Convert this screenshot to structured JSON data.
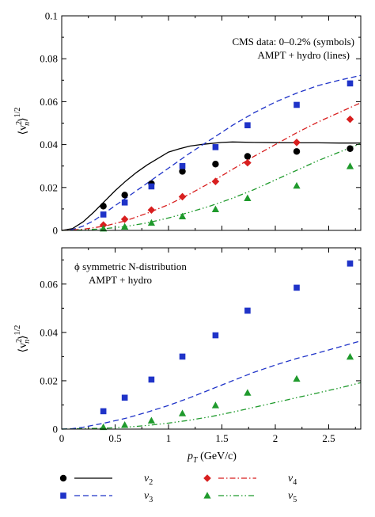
{
  "colors": {
    "v2": "#000000",
    "v3": "#1f33c8",
    "v4": "#d81f1f",
    "v5": "#1f9a2c"
  },
  "chart_data": [
    {
      "type": "scatter",
      "panel": "top",
      "annotation_lines": [
        "CMS data: 0–0.2% (symbols)",
        "AMPT + hydro (lines)"
      ],
      "ylabel_main": "⟨v",
      "ylabel_sup": "2",
      "ylabel_sub": "n",
      "ylabel_close": "⟩",
      "ylabel_exp": "1/2",
      "xlim": [
        0,
        2.8
      ],
      "ylim": [
        0,
        0.1
      ],
      "yticks": [
        0,
        0.02,
        0.04,
        0.06,
        0.08,
        0.1
      ],
      "ytick_labels": [
        "0",
        "0.02",
        "0.04",
        "0.06",
        "0.08",
        "0.1"
      ],
      "series": [
        {
          "name": "v2",
          "kind": "points",
          "marker": "circle",
          "color": "#000000",
          "x": [
            0.39,
            0.59,
            0.84,
            1.13,
            1.44,
            1.74,
            2.2,
            2.7
          ],
          "y": [
            0.0113,
            0.0165,
            0.0218,
            0.0275,
            0.0309,
            0.0345,
            0.0368,
            0.0381
          ]
        },
        {
          "name": "v3",
          "kind": "points",
          "marker": "square",
          "color": "#1f33c8",
          "x": [
            0.39,
            0.59,
            0.84,
            1.13,
            1.44,
            1.74,
            2.2,
            2.7
          ],
          "y": [
            0.0074,
            0.013,
            0.0205,
            0.03,
            0.0388,
            0.049,
            0.0585,
            0.0685
          ]
        },
        {
          "name": "v4",
          "kind": "points",
          "marker": "diamond",
          "color": "#d81f1f",
          "x": [
            0.39,
            0.59,
            0.84,
            1.13,
            1.44,
            1.74,
            2.2,
            2.7
          ],
          "y": [
            0.0025,
            0.0052,
            0.0095,
            0.0157,
            0.0228,
            0.0315,
            0.041,
            0.0518
          ]
        },
        {
          "name": "v5",
          "kind": "points",
          "marker": "triangle",
          "color": "#1f9a2c",
          "x": [
            0.39,
            0.59,
            0.84,
            1.13,
            1.44,
            1.74,
            2.2,
            2.7
          ],
          "y": [
            0.0008,
            0.0017,
            0.0035,
            0.0065,
            0.0098,
            0.015,
            0.0208,
            0.0299
          ]
        },
        {
          "name": "v2",
          "kind": "line",
          "dash": "solid",
          "color": "#000000",
          "x": [
            0,
            0.1,
            0.2,
            0.3,
            0.4,
            0.5,
            0.6,
            0.7,
            0.8,
            0.9,
            1.0,
            1.1,
            1.2,
            1.3,
            1.4,
            1.5,
            1.6,
            1.8,
            2.0,
            2.2,
            2.4,
            2.6,
            2.8
          ],
          "y": [
            0,
            0.0008,
            0.004,
            0.0085,
            0.0135,
            0.0185,
            0.023,
            0.027,
            0.0305,
            0.0335,
            0.0365,
            0.038,
            0.0393,
            0.04,
            0.0405,
            0.041,
            0.0412,
            0.041,
            0.0409,
            0.0408,
            0.0408,
            0.0407,
            0.0407
          ]
        },
        {
          "name": "v3",
          "kind": "line",
          "dash": "dashed",
          "color": "#1f33c8",
          "x": [
            0,
            0.1,
            0.2,
            0.3,
            0.4,
            0.5,
            0.6,
            0.7,
            0.8,
            0.9,
            1.0,
            1.2,
            1.4,
            1.6,
            1.8,
            2.0,
            2.2,
            2.4,
            2.6,
            2.8
          ],
          "y": [
            0,
            0.0004,
            0.002,
            0.0045,
            0.008,
            0.0115,
            0.015,
            0.0185,
            0.022,
            0.0255,
            0.029,
            0.036,
            0.0425,
            0.049,
            0.0548,
            0.0598,
            0.064,
            0.0675,
            0.07,
            0.0722
          ]
        },
        {
          "name": "v4",
          "kind": "line",
          "dash": "dashdot",
          "color": "#d81f1f",
          "x": [
            0,
            0.2,
            0.4,
            0.6,
            0.8,
            1.0,
            1.2,
            1.4,
            1.6,
            1.8,
            2.0,
            2.2,
            2.4,
            2.6,
            2.8
          ],
          "y": [
            0,
            0.0005,
            0.002,
            0.0045,
            0.008,
            0.012,
            0.017,
            0.0225,
            0.0285,
            0.0345,
            0.04,
            0.0455,
            0.0505,
            0.055,
            0.0595
          ]
        },
        {
          "name": "v5",
          "kind": "line",
          "dash": "dashdotdot",
          "color": "#1f9a2c",
          "x": [
            0,
            0.2,
            0.4,
            0.6,
            0.8,
            1.0,
            1.2,
            1.4,
            1.6,
            1.8,
            2.0,
            2.2,
            2.4,
            2.6,
            2.8
          ],
          "y": [
            0,
            0.0002,
            0.0008,
            0.0018,
            0.0035,
            0.0058,
            0.0085,
            0.0115,
            0.015,
            0.019,
            0.0235,
            0.028,
            0.0325,
            0.0365,
            0.0405
          ]
        }
      ]
    },
    {
      "type": "scatter",
      "panel": "bottom",
      "annotation_lines": [
        "ϕ symmetric N-distribution",
        "AMPT + hydro"
      ],
      "ylabel_main": "⟨v",
      "ylabel_sup": "2",
      "ylabel_sub": "n",
      "ylabel_close": "⟩",
      "ylabel_exp": "1/2",
      "xlabel_main": "p",
      "xlabel_sub": "T",
      "xlabel_rest": " (GeV/c)",
      "xlim": [
        0,
        2.8
      ],
      "ylim": [
        0,
        0.075
      ],
      "yticks": [
        0,
        0.02,
        0.04,
        0.06
      ],
      "ytick_labels": [
        "0",
        "0.02",
        "0.04",
        "0.06"
      ],
      "xticks": [
        0,
        0.5,
        1,
        1.5,
        2,
        2.5
      ],
      "xtick_labels": [
        "0",
        "0.5",
        "1",
        "1.5",
        "2",
        "2.5"
      ],
      "series": [
        {
          "name": "v3",
          "kind": "points",
          "marker": "square",
          "color": "#1f33c8",
          "x": [
            0.39,
            0.59,
            0.84,
            1.13,
            1.44,
            1.74,
            2.2,
            2.7
          ],
          "y": [
            0.0074,
            0.013,
            0.0205,
            0.03,
            0.0388,
            0.049,
            0.0585,
            0.0685
          ]
        },
        {
          "name": "v5",
          "kind": "points",
          "marker": "triangle",
          "color": "#1f9a2c",
          "x": [
            0.39,
            0.59,
            0.84,
            1.13,
            1.44,
            1.74,
            2.2,
            2.7
          ],
          "y": [
            0.0008,
            0.0017,
            0.0035,
            0.0065,
            0.0098,
            0.015,
            0.0208,
            0.0299
          ]
        },
        {
          "name": "v3",
          "kind": "line",
          "dash": "dashed",
          "color": "#1f33c8",
          "x": [
            0,
            0.1,
            0.2,
            0.4,
            0.6,
            0.8,
            1.0,
            1.2,
            1.4,
            1.6,
            1.8,
            2.0,
            2.2,
            2.4,
            2.6,
            2.8
          ],
          "y": [
            0,
            0.0002,
            0.0008,
            0.0025,
            0.0045,
            0.007,
            0.0098,
            0.013,
            0.0165,
            0.02,
            0.0235,
            0.0265,
            0.0292,
            0.0315,
            0.034,
            0.0365
          ]
        },
        {
          "name": "v5",
          "kind": "line",
          "dash": "dashdotdot",
          "color": "#1f9a2c",
          "x": [
            0,
            0.2,
            0.4,
            0.6,
            0.8,
            1.0,
            1.2,
            1.4,
            1.6,
            1.8,
            2.0,
            2.2,
            2.4,
            2.6,
            2.8
          ],
          "y": [
            0,
            0.0002,
            0.0004,
            0.0008,
            0.0015,
            0.0025,
            0.0037,
            0.0052,
            0.007,
            0.009,
            0.011,
            0.013,
            0.015,
            0.017,
            0.0192
          ]
        }
      ]
    }
  ],
  "legend": {
    "placement": "below plots, two columns",
    "entries": [
      {
        "symbol": "v",
        "sub": "2",
        "marker": "circle",
        "dash": "solid",
        "color": "#000000"
      },
      {
        "symbol": "v",
        "sub": "3",
        "marker": "square",
        "dash": "dashed",
        "color": "#1f33c8"
      },
      {
        "symbol": "v",
        "sub": "4",
        "marker": "diamond",
        "dash": "dashdot",
        "color": "#d81f1f"
      },
      {
        "symbol": "v",
        "sub": "5",
        "marker": "triangle",
        "dash": "dashdotdot",
        "color": "#1f9a2c"
      }
    ]
  }
}
